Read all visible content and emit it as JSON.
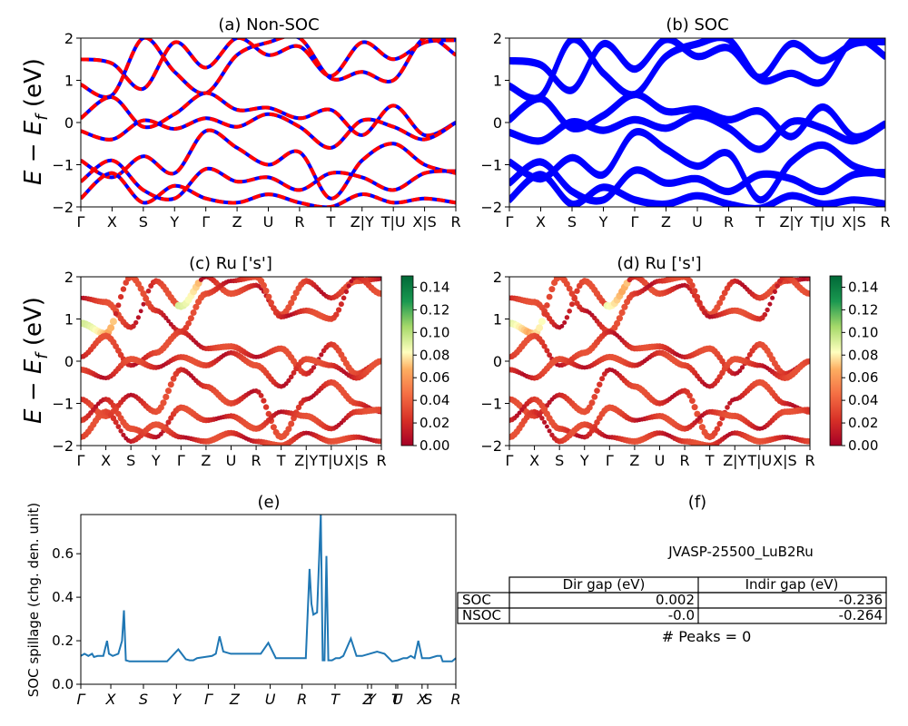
{
  "panels": {
    "a": {
      "title": "(a) Non-SOC"
    },
    "b": {
      "title": "(b) SOC"
    },
    "c": {
      "title": "(c)  Ru ['s']"
    },
    "d": {
      "title": "(d) Ru ['s']"
    },
    "e": {
      "title": "(e)"
    },
    "f": {
      "title": "(f)"
    }
  },
  "band_axis": {
    "ylabel": "E − E_f (eV)",
    "ylim": [
      -2,
      2
    ],
    "yticks": [
      "2",
      "1",
      "0",
      "−1",
      "−2"
    ],
    "kpath": [
      "Γ",
      "X",
      "S",
      "Y",
      "Γ",
      "Z",
      "U",
      "R",
      "T",
      "Z|Y",
      "T|U",
      "X|S",
      "R"
    ],
    "kpath_display_ab": [
      "Γ",
      "X",
      "S",
      "Y",
      "Γ",
      "Z",
      "U",
      "R",
      "T",
      "Z|Y",
      "T|U",
      "X|S",
      "R"
    ],
    "kpath_display_cd": [
      "Γ",
      "X",
      "S",
      "Y",
      "Γ",
      "Z",
      "U",
      "R",
      "T",
      "Z|Y",
      "T|U",
      "X|S",
      "R"
    ]
  },
  "colorbar": {
    "ticks": [
      "0.14",
      "0.12",
      "0.10",
      "0.08",
      "0.06",
      "0.04",
      "0.02",
      "0.00"
    ],
    "min": 0.0,
    "max": 0.15
  },
  "colors": {
    "nonsoc_a": "#ff0000",
    "nonsoc_b": "#0000ff",
    "soc": "#0000ff",
    "spillage": "#1f77b4"
  },
  "chart_data": [
    {
      "type": "line",
      "panel": "a",
      "title": "(a) Non-SOC",
      "ylabel": "E − E_f (eV)",
      "ylim": [
        -2,
        2
      ],
      "x_ticks": [
        "Γ",
        "X",
        "S",
        "Y",
        "Γ",
        "Z",
        "U",
        "R",
        "T",
        "Z|Y",
        "T|U",
        "X|S",
        "R"
      ],
      "series": [
        {
          "values": [
            1.5,
            1.4,
            0.8,
            1.9,
            1.3,
            2.0,
            1.6,
            1.8,
            1.1,
            1.9,
            1.5,
            1.9,
            1.95
          ]
        },
        {
          "values": [
            0.9,
            0.65,
            2.0,
            1.2,
            0.7,
            1.6,
            1.9,
            2.0,
            1.05,
            1.2,
            1.0,
            2.0,
            1.6
          ]
        },
        {
          "values": [
            0.1,
            0.6,
            -0.1,
            0.2,
            0.7,
            0.3,
            0.35,
            0.1,
            0.3,
            -0.3,
            0.4,
            -0.3,
            0.0
          ]
        },
        {
          "values": [
            -0.2,
            -0.4,
            0.05,
            -0.15,
            0.1,
            -0.1,
            0.2,
            -0.1,
            -0.6,
            0.05,
            -0.1,
            -0.4,
            0.0
          ]
        },
        {
          "values": [
            -0.9,
            -1.3,
            -0.8,
            -1.2,
            -0.2,
            -0.6,
            -1.0,
            -0.7,
            -1.8,
            -0.9,
            -0.5,
            -1.0,
            -1.2
          ]
        },
        {
          "values": [
            -1.4,
            -0.9,
            -1.6,
            -1.8,
            -1.1,
            -1.4,
            -1.3,
            -1.6,
            -1.2,
            -1.3,
            -1.6,
            -1.2,
            -1.15
          ]
        },
        {
          "values": [
            -1.8,
            -1.2,
            -1.9,
            -1.5,
            -1.8,
            -1.9,
            -1.7,
            -1.9,
            -2.0,
            -1.7,
            -1.9,
            -1.8,
            -1.9
          ]
        }
      ]
    },
    {
      "type": "line",
      "panel": "b",
      "title": "(b) SOC",
      "ylim": [
        -2,
        2
      ],
      "x_ticks": [
        "Γ",
        "X",
        "S",
        "Y",
        "Γ",
        "Z",
        "U",
        "R",
        "T",
        "Z|Y",
        "T|U",
        "X|S",
        "R"
      ],
      "series": [
        {
          "values": [
            1.5,
            1.4,
            0.8,
            1.9,
            1.3,
            2.0,
            1.6,
            1.8,
            1.1,
            1.9,
            1.5,
            1.9,
            1.95
          ]
        },
        {
          "values": [
            0.9,
            0.65,
            2.0,
            1.2,
            0.7,
            1.6,
            1.9,
            2.0,
            1.05,
            1.2,
            1.0,
            2.0,
            1.6
          ]
        },
        {
          "values": [
            0.1,
            0.6,
            -0.1,
            0.2,
            0.7,
            0.3,
            0.35,
            0.1,
            0.3,
            -0.3,
            0.4,
            -0.3,
            0.0
          ]
        },
        {
          "values": [
            -0.2,
            -0.4,
            0.05,
            -0.15,
            0.1,
            -0.1,
            0.2,
            -0.1,
            -0.6,
            0.05,
            -0.1,
            -0.4,
            0.0
          ]
        },
        {
          "values": [
            -0.9,
            -1.3,
            -0.8,
            -1.2,
            -0.2,
            -0.6,
            -1.0,
            -0.7,
            -1.8,
            -0.9,
            -0.5,
            -1.0,
            -1.2
          ]
        },
        {
          "values": [
            -1.4,
            -0.9,
            -1.6,
            -1.8,
            -1.1,
            -1.4,
            -1.3,
            -1.6,
            -1.2,
            -1.3,
            -1.6,
            -1.2,
            -1.15
          ]
        },
        {
          "values": [
            -1.8,
            -1.2,
            -1.9,
            -1.5,
            -1.8,
            -1.9,
            -1.7,
            -1.9,
            -2.0,
            -1.7,
            -1.9,
            -1.8,
            -1.9
          ]
        }
      ]
    },
    {
      "type": "scatter",
      "panel": "c",
      "title": "(c)  Ru ['s']",
      "ylim": [
        -2,
        2
      ],
      "colorbar_range": [
        0.0,
        0.15
      ],
      "x_ticks": [
        "Γ",
        "X",
        "S",
        "Y",
        "Γ",
        "Z",
        "U",
        "R",
        "T",
        "Z|Y",
        "T|U",
        "X|S",
        "R"
      ]
    },
    {
      "type": "scatter",
      "panel": "d",
      "title": "(d) Ru ['s']",
      "ylim": [
        -2,
        2
      ],
      "colorbar_range": [
        0.0,
        0.15
      ],
      "x_ticks": [
        "Γ",
        "X",
        "S",
        "Y",
        "Γ",
        "Z",
        "U",
        "R",
        "T",
        "Z|Y",
        "T|U",
        "X|S",
        "R"
      ]
    },
    {
      "type": "line",
      "panel": "e",
      "title": "(e)",
      "ylabel": "SOC spillage (chg. den. unit)",
      "ylim": [
        0.0,
        0.78
      ],
      "yticks": [
        "0.0",
        "0.2",
        "0.4",
        "0.6"
      ],
      "x_ticks": [
        "Γ",
        "X",
        "S",
        "Y",
        "Γ",
        "Z",
        "U",
        "R",
        "T",
        "Z",
        "Y",
        "T",
        "U",
        "X",
        "S",
        "R"
      ],
      "x": [
        0,
        0.01,
        0.02,
        0.03,
        0.035,
        0.045,
        0.06,
        0.07,
        0.075,
        0.085,
        0.1,
        0.11,
        0.115,
        0.12,
        0.13,
        0.14,
        0.155,
        0.165,
        0.17,
        0.18,
        0.2,
        0.23,
        0.26,
        0.28,
        0.29,
        0.3,
        0.31,
        0.33,
        0.35,
        0.36,
        0.37,
        0.38,
        0.4,
        0.43,
        0.46,
        0.48,
        0.5,
        0.52,
        0.53,
        0.55,
        0.58,
        0.6,
        0.61,
        0.615,
        0.62,
        0.63,
        0.64,
        0.645,
        0.65,
        0.655,
        0.66,
        0.67,
        0.68,
        0.69,
        0.7,
        0.72,
        0.735,
        0.74,
        0.75,
        0.77,
        0.79,
        0.81,
        0.83,
        0.845,
        0.86,
        0.87,
        0.88,
        0.89,
        0.9,
        0.91,
        0.915,
        0.93,
        0.95,
        0.96,
        0.965,
        0.98,
        0.99,
        1.0
      ],
      "y": [
        0.13,
        0.14,
        0.13,
        0.14,
        0.125,
        0.13,
        0.13,
        0.2,
        0.14,
        0.13,
        0.14,
        0.2,
        0.34,
        0.11,
        0.105,
        0.105,
        0.105,
        0.105,
        0.105,
        0.105,
        0.105,
        0.105,
        0.16,
        0.115,
        0.11,
        0.11,
        0.12,
        0.125,
        0.13,
        0.14,
        0.22,
        0.15,
        0.14,
        0.14,
        0.14,
        0.14,
        0.19,
        0.12,
        0.12,
        0.12,
        0.12,
        0.12,
        0.53,
        0.37,
        0.32,
        0.33,
        0.78,
        0.11,
        0.11,
        0.59,
        0.11,
        0.11,
        0.12,
        0.12,
        0.13,
        0.21,
        0.13,
        0.13,
        0.13,
        0.14,
        0.15,
        0.14,
        0.105,
        0.11,
        0.12,
        0.12,
        0.13,
        0.12,
        0.2,
        0.12,
        0.12,
        0.12,
        0.13,
        0.13,
        0.105,
        0.105,
        0.105,
        0.12
      ]
    },
    {
      "type": "table",
      "panel": "f",
      "title": "(f)",
      "caption": "JVASP-25500_LuB2Ru",
      "columns": [
        "",
        "Dir gap (eV)",
        "Indir gap (eV)"
      ],
      "rows": [
        [
          "SOC",
          "0.002",
          "-0.236"
        ],
        [
          "NSOC",
          "-0.0",
          "-0.264"
        ]
      ],
      "footer": "# Peaks = 0"
    }
  ]
}
